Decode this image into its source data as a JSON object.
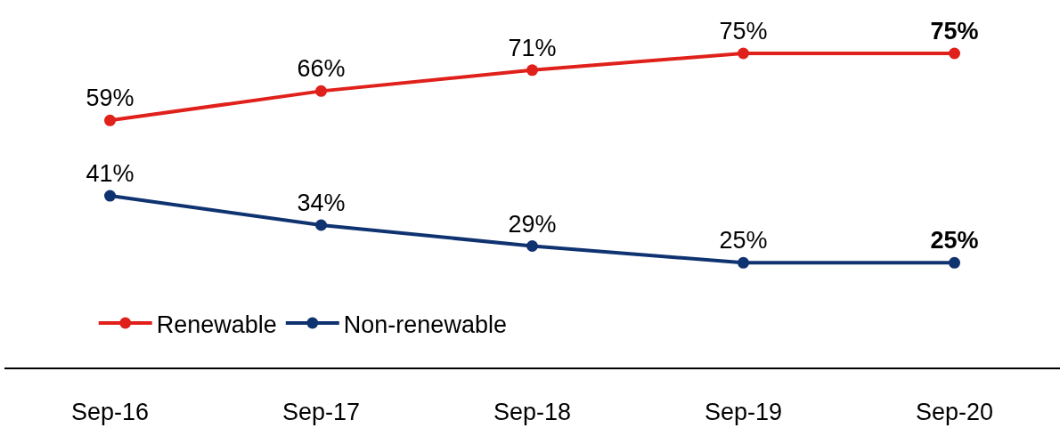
{
  "chart_data": {
    "type": "line",
    "categories": [
      "Sep-16",
      "Sep-17",
      "Sep-18",
      "Sep-19",
      "Sep-20"
    ],
    "series": [
      {
        "name": "Renewable",
        "color": "#e0201b",
        "values": [
          59,
          66,
          71,
          75,
          75
        ],
        "value_labels": [
          "59%",
          "66%",
          "71%",
          "75%",
          "75%"
        ]
      },
      {
        "name": "Non-renewable",
        "color": "#0f3370",
        "values": [
          41,
          34,
          29,
          25,
          25
        ],
        "value_labels": [
          "41%",
          "34%",
          "29%",
          "25%",
          "25%"
        ]
      }
    ],
    "marker": "circle",
    "line_style": "solid",
    "legend": "bottom left"
  }
}
